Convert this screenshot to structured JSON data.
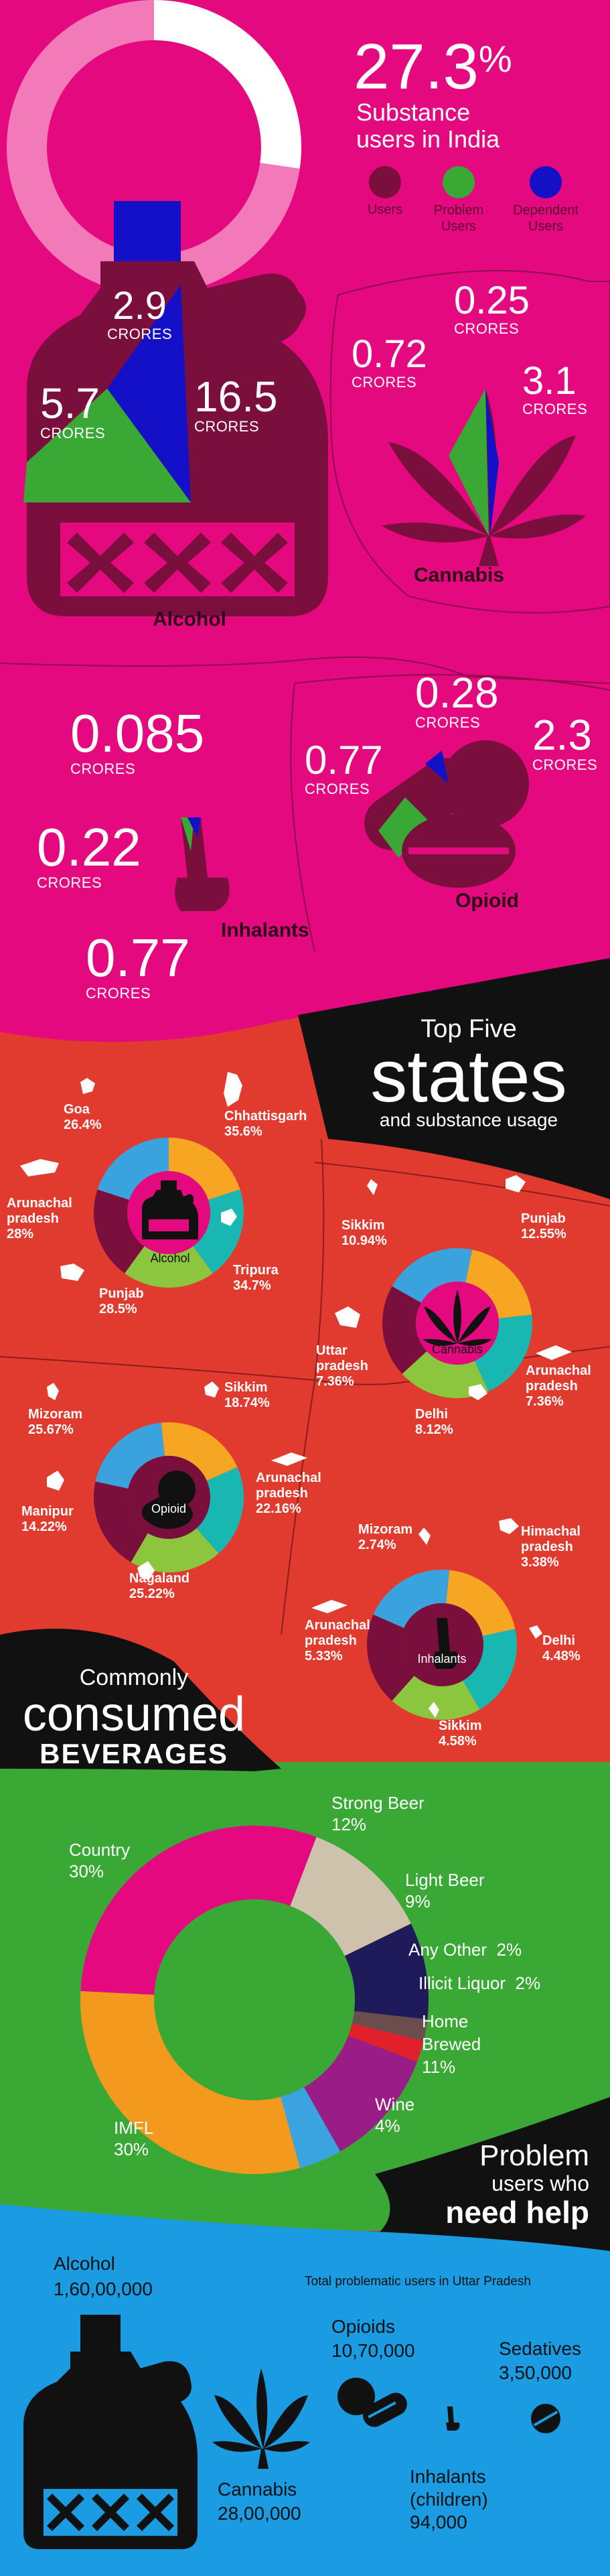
{
  "header": {
    "stat": "27.3",
    "stat_unit": "%",
    "subtitle_line1": "Substance",
    "subtitle_line2": "users in India",
    "ring_fraction": 0.273,
    "legend": [
      {
        "label_line1": "Users",
        "label_line2": "",
        "color": "#7a0e3c"
      },
      {
        "label_line1": "Problem",
        "label_line2": "Users",
        "color": "#3aa835"
      },
      {
        "label_line1": "Dependent",
        "label_line2": "Users",
        "color": "#1410c8"
      }
    ]
  },
  "alcohol": {
    "name": "Alcohol",
    "dependent": "2.9",
    "problem": "5.7",
    "users": "16.5",
    "unit": "CRORES"
  },
  "cannabis": {
    "name": "Cannabis",
    "dependent": "0.25",
    "problem": "0.72",
    "users": "3.1",
    "unit": "CRORES"
  },
  "inhalants": {
    "name": "Inhalants",
    "dependent": "0.085",
    "problem": "0.22",
    "users": "0.77",
    "unit": "CRORES"
  },
  "opioid": {
    "name": "Opioid",
    "dependent": "0.28",
    "problem": "0.77",
    "users": "2.3",
    "unit": "CRORES"
  },
  "top_states": {
    "title_line1": "Top Five",
    "title_big": "states",
    "title_line3": "and substance usage",
    "alcohol": {
      "center": "Alcohol",
      "states": [
        {
          "name": "Goa",
          "value": "26.4%"
        },
        {
          "name": "Chhattisgarh",
          "value": "35.6%"
        },
        {
          "name": "Arunachal pradesh",
          "value": "28%"
        },
        {
          "name": "Tripura",
          "value": "34.7%"
        },
        {
          "name": "Punjab",
          "value": "28.5%"
        }
      ]
    },
    "cannabis": {
      "center": "Cannabis",
      "states": [
        {
          "name": "Sikkim",
          "value": "10.94%"
        },
        {
          "name": "Punjab",
          "value": "12.55%"
        },
        {
          "name": "Uttar pradesh",
          "value": "7.36%"
        },
        {
          "name": "Arunachal pradesh",
          "value": "7.36%"
        },
        {
          "name": "Delhi",
          "value": "8.12%"
        }
      ]
    },
    "opioid": {
      "center": "Opioid",
      "states": [
        {
          "name": "Mizoram",
          "value": "25.67%"
        },
        {
          "name": "Sikkim",
          "value": "18.74%"
        },
        {
          "name": "Manipur",
          "value": "14.22%"
        },
        {
          "name": "Arunachal pradesh",
          "value": "22.16%"
        },
        {
          "name": "Nagaland",
          "value": "25.22%"
        }
      ]
    },
    "inhalants": {
      "center": "Inhalants",
      "states": [
        {
          "name": "Mizoram",
          "value": "2.74%"
        },
        {
          "name": "Himachal pradesh",
          "value": "3.38%"
        },
        {
          "name": "Arunachal pradesh",
          "value": "5.33%"
        },
        {
          "name": "Delhi",
          "value": "4.48%"
        },
        {
          "name": "Sikkim",
          "value": "4.58%"
        }
      ]
    }
  },
  "beverages": {
    "title_line1": "Commonly",
    "title_line2": "consumed",
    "title_line3": "BEVERAGES"
  },
  "chart_data": {
    "type": "pie",
    "title": "",
    "categories": [
      "Country",
      "Strong Beer",
      "Light Beer",
      "Any Other",
      "Illicit Liquor",
      "Home Brewed",
      "Wine",
      "IMFL"
    ],
    "values": [
      30,
      12,
      9,
      2,
      2,
      11,
      4,
      30
    ],
    "labels": [
      "30%",
      "12%",
      "9%",
      "2%",
      "2%",
      "11%",
      "4%",
      "30%"
    ],
    "colors": [
      "#e5097f",
      "#cfc2ad",
      "#1f1a5a",
      "#6b4d4d",
      "#e2202c",
      "#9a1c86",
      "#3ba4e0",
      "#f39a1e"
    ]
  },
  "help": {
    "title_line1": "Problem",
    "title_line2": "users who",
    "title_line3": "need help",
    "subtitle": "Total problematic users in Uttar Pradesh",
    "items": [
      {
        "name": "Alcohol",
        "value": "1,60,00,000"
      },
      {
        "name": "Cannabis",
        "value": "28,00,000"
      },
      {
        "name": "Opioids",
        "value": "10,70,000"
      },
      {
        "name": "Sedatives",
        "value": "3,50,000"
      },
      {
        "name": "Inhalants (children)",
        "value": "94,000"
      }
    ]
  }
}
